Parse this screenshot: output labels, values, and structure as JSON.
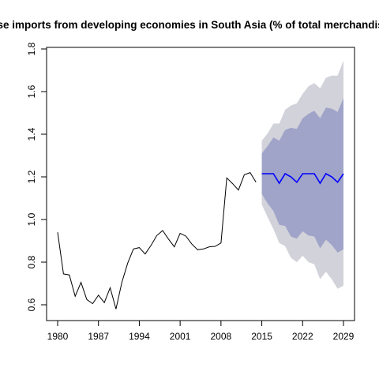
{
  "chart_data": {
    "type": "line",
    "title": "Merchandise imports from developing economies in South Asia (% of total merchandise imports)",
    "xlabel": "",
    "ylabel": "",
    "xlim": [
      1980,
      2029
    ],
    "ylim": [
      0.6,
      1.8
    ],
    "x_ticks": [
      "1980",
      "1987",
      "1994",
      "2001",
      "2008",
      "2015",
      "2022",
      "2029"
    ],
    "y_ticks": [
      "0.6",
      "0.8",
      "1.0",
      "1.2",
      "1.4",
      "1.6",
      "1.8"
    ],
    "grid": false,
    "legend": "none",
    "colors": {
      "history": "#000000",
      "forecast": "#0000ff",
      "band_80": "#a0a4c8",
      "band_95": "#d2d2da"
    },
    "series": [
      {
        "role": "history",
        "x": [
          1980,
          1981,
          1982,
          1983,
          1984,
          1985,
          1986,
          1987,
          1988,
          1989,
          1990,
          1991,
          1992,
          1993,
          1994,
          1995,
          1996,
          1997,
          1998,
          1999,
          2000,
          2001,
          2002,
          2003,
          2004,
          2005,
          2006,
          2007,
          2008,
          2009,
          2010,
          2011,
          2012,
          2013,
          2014
        ],
        "y": [
          0.94,
          0.745,
          0.74,
          0.64,
          0.705,
          0.625,
          0.605,
          0.645,
          0.61,
          0.68,
          0.58,
          0.705,
          0.795,
          0.862,
          0.868,
          0.838,
          0.878,
          0.925,
          0.948,
          0.908,
          0.872,
          0.935,
          0.922,
          0.885,
          0.858,
          0.862,
          0.872,
          0.874,
          0.89,
          1.195,
          1.168,
          1.138,
          1.21,
          1.22,
          1.175
        ]
      },
      {
        "role": "forecast",
        "x": [
          2015,
          2016,
          2017,
          2018,
          2019,
          2020,
          2021,
          2022,
          2023,
          2024,
          2025,
          2026,
          2027,
          2028,
          2029
        ],
        "y": [
          1.215,
          1.215,
          1.215,
          1.17,
          1.215,
          1.2,
          1.175,
          1.215,
          1.215,
          1.215,
          1.17,
          1.215,
          1.2,
          1.175,
          1.215
        ],
        "lo80": [
          1.12,
          1.075,
          1.04,
          0.975,
          0.97,
          0.92,
          0.91,
          0.945,
          0.925,
          0.92,
          0.865,
          0.905,
          0.88,
          0.845,
          0.86
        ],
        "hi80": [
          1.31,
          1.345,
          1.385,
          1.37,
          1.42,
          1.43,
          1.425,
          1.475,
          1.495,
          1.51,
          1.475,
          1.525,
          1.52,
          1.505,
          1.57
        ],
        "lo95": [
          1.07,
          1.01,
          0.955,
          0.89,
          0.875,
          0.82,
          0.8,
          0.83,
          0.8,
          0.79,
          0.72,
          0.755,
          0.72,
          0.675,
          0.69
        ],
        "hi95": [
          1.37,
          1.405,
          1.45,
          1.45,
          1.515,
          1.535,
          1.545,
          1.59,
          1.625,
          1.64,
          1.615,
          1.665,
          1.675,
          1.675,
          1.745
        ]
      }
    ]
  }
}
